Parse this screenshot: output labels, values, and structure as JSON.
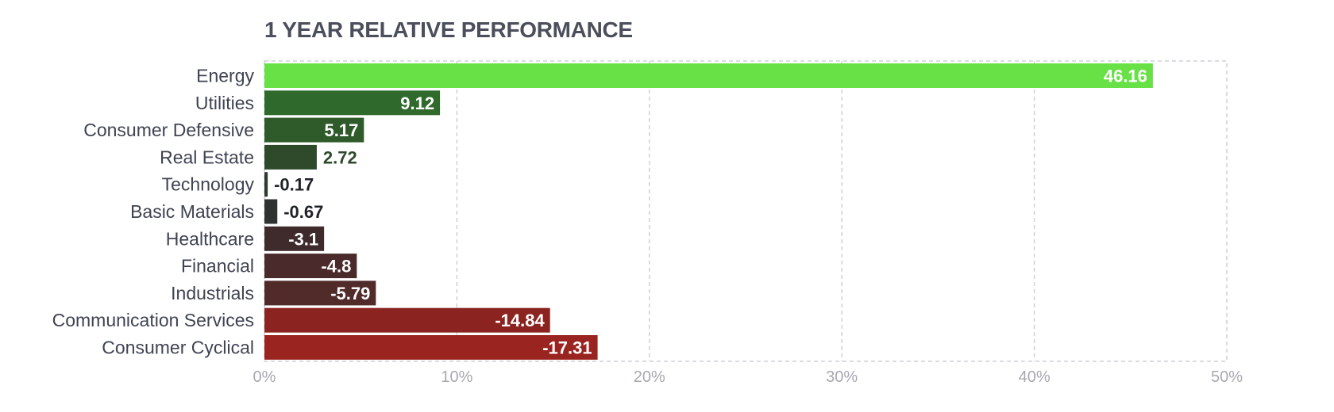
{
  "chart_data": {
    "type": "bar",
    "orientation": "horizontal",
    "title": "1 YEAR RELATIVE PERFORMANCE",
    "xlabel": "",
    "ylabel": "",
    "unit": "%",
    "categories": [
      "Energy",
      "Utilities",
      "Consumer Defensive",
      "Real Estate",
      "Technology",
      "Basic Materials",
      "Healthcare",
      "Financial",
      "Industrials",
      "Communication Services",
      "Consumer Cyclical"
    ],
    "values": [
      46.16,
      9.12,
      5.17,
      2.72,
      -0.17,
      -0.67,
      -3.1,
      -4.8,
      -5.79,
      -14.84,
      -17.31
    ],
    "value_labels": [
      "46.16",
      "9.12",
      "5.17",
      "2.72",
      "-0.17",
      "-0.67",
      "-3.1",
      "-4.8",
      "-5.79",
      "-14.84",
      "-17.31"
    ],
    "bar_colors": [
      "#67e146",
      "#2f6a2c",
      "#2f5a2a",
      "#2e4a2b",
      "#2f3a2f",
      "#2f3230",
      "#3f2b2b",
      "#4a2a2a",
      "#512a2a",
      "#8b2420",
      "#9a2420"
    ],
    "bar_length_basis": "absolute value",
    "xlim": [
      0,
      50
    ],
    "xticks": [
      0,
      10,
      20,
      30,
      40,
      50
    ],
    "xtick_labels": [
      "0%",
      "10%",
      "20%",
      "30%",
      "40%",
      "50%"
    ],
    "grid": "dashed vertical",
    "legend": "none"
  }
}
